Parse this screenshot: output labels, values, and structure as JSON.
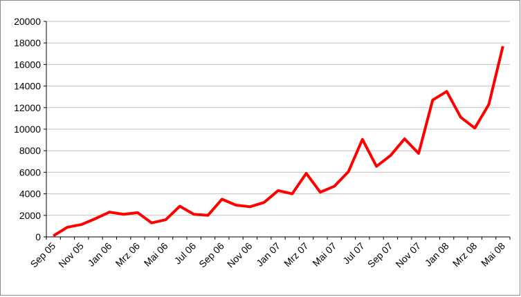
{
  "chart_data": {
    "type": "line",
    "categories": [
      "Sep 05",
      null,
      "Nov 05",
      null,
      "Jan 06",
      null,
      "Mrz 06",
      null,
      "Mai 06",
      null,
      "Jul 06",
      null,
      "Sep 06",
      null,
      "Nov 06",
      null,
      "Jan 07",
      null,
      "Mrz 07",
      null,
      "Mai 07",
      null,
      "Jul 07",
      null,
      "Sep 07",
      null,
      "Nov 07",
      null,
      "Jan 08",
      null,
      "Mrz 08",
      null,
      "Mai 08"
    ],
    "series": [
      {
        "color": "#ff0000",
        "values": [
          100,
          900,
          1150,
          1700,
          2300,
          2100,
          2250,
          1300,
          1600,
          2850,
          2100,
          2000,
          3500,
          2950,
          2800,
          3200,
          4300,
          4000,
          5900,
          4150,
          4700,
          6050,
          9050,
          6550,
          7550,
          9100,
          7750,
          12700,
          13500,
          11100,
          10100,
          12300,
          17700
        ]
      }
    ],
    "ylim": [
      0,
      20000
    ],
    "yticks": [
      0,
      2000,
      4000,
      6000,
      8000,
      10000,
      12000,
      14000,
      16000,
      18000,
      20000
    ],
    "grid": true
  }
}
